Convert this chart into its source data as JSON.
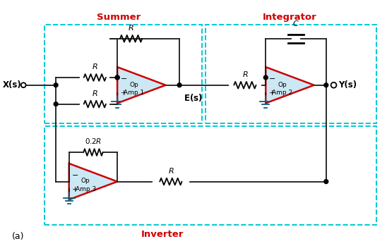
{
  "background_color": "#ffffff",
  "dashed_box_color": "#00c8d4",
  "op_amp_fill": "#cce8f4",
  "op_amp_edge": "#cc0000",
  "wire_color": "#1a1a1a",
  "ground_color": "#006080",
  "title_summer": "Summer",
  "title_integrator": "Integrator",
  "title_inverter": "Inverter",
  "label_a": "(a)",
  "figsize": [
    5.48,
    3.49
  ],
  "dpi": 100,
  "xlim": [
    0,
    11
  ],
  "ylim": [
    0,
    7
  ]
}
